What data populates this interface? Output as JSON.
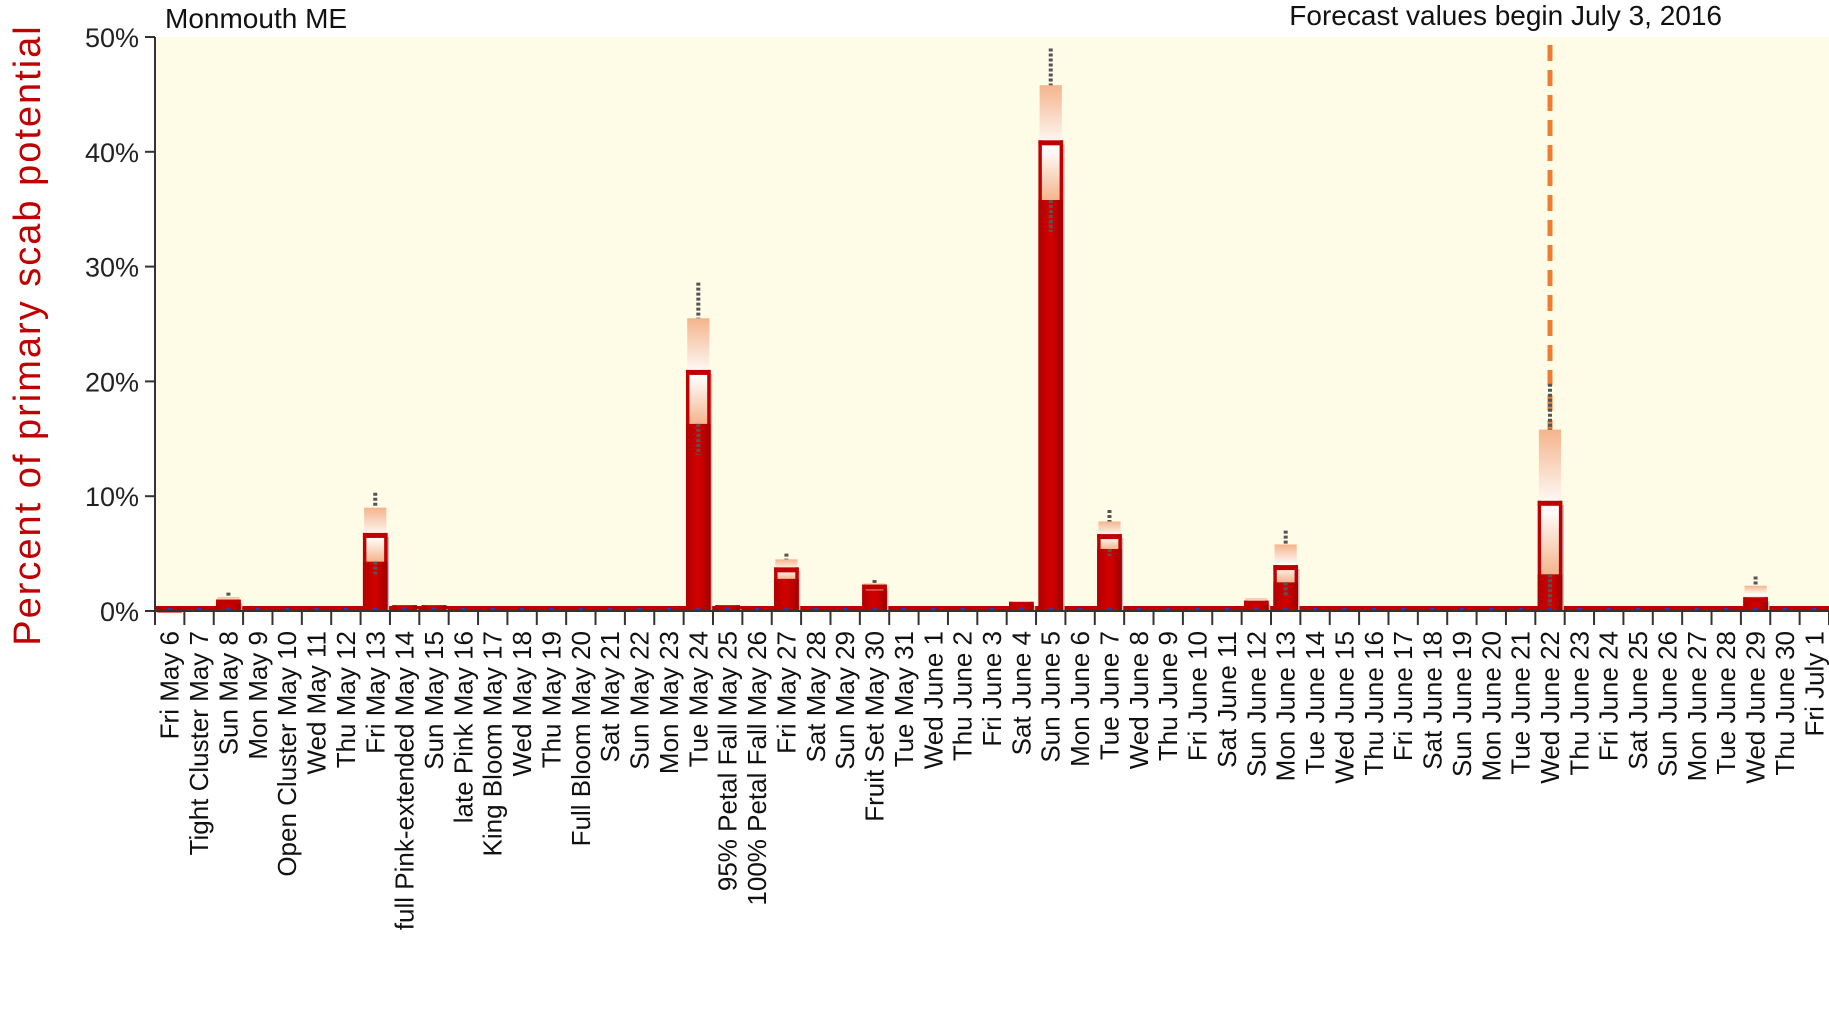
{
  "chart_data": {
    "type": "bar",
    "title": "Monmouth  ME",
    "ylabel": "Percent  of  primary  scab  potential",
    "xlabel": "",
    "ylim": [
      0,
      50
    ],
    "ytick_values": [
      0,
      10,
      20,
      30,
      40,
      50
    ],
    "ytick_labels": [
      "0%",
      "10%",
      "20%",
      "30%",
      "40%",
      "50%"
    ],
    "grid": false,
    "forecast_annotation": "Forecast values begin July 3, 2016",
    "forecast_marker_category": "Wed  June 22",
    "colors": {
      "bar": "#c00000",
      "range": "#f4b48c",
      "plot_bg": "#fefbe6",
      "forecast_line": "#ed7d31",
      "axis_label": "#c00000"
    },
    "categories": [
      "Fri  May 6",
      "Tight Cluster  May 7",
      "Sun  May 8",
      "Mon  May 9",
      "Open Cluster May 10",
      "Wed  May 11",
      "Thu  May 12",
      "Fri  May 13",
      "full Pink-extended  May 14",
      "Sun  May 15",
      "late Pink  May 16",
      "King Bloom  May 17",
      "Wed  May 18",
      "Thu  May 19",
      "Full Bloom  May 20",
      "Sat  May 21",
      "Sun  May 22",
      "Mon  May 23",
      "Tue  May 24",
      "95% Petal Fall  May 25",
      "100% Petal Fall  May 26",
      "Fri  May 27",
      "Sat  May 28",
      "Sun  May 29",
      "Fruit Set  May 30",
      "Tue  May 31",
      "Wed  June 1",
      "Thu  June 2",
      "Fri  June 3",
      "Sat  June 4",
      "Sun  June 5",
      "Mon  June 6",
      "Tue  June 7",
      "Wed  June 8",
      "Thu  June 9",
      "Fri  June 10",
      "Sat  June 11",
      "Sun  June 12",
      "Mon  June 13",
      "Tue  June 14",
      "Wed  June 15",
      "Thu  June 16",
      "Fri  June 17",
      "Sat  June 18",
      "Sun  June 19",
      "Mon  June 20",
      "Tue  June 21",
      "Wed  June 22",
      "Thu  June 23",
      "Fri  June 24",
      "Sat  June 25",
      "Sun  June 26",
      "Mon  June 27",
      "Tue  June 28",
      "Wed  June 29",
      "Thu  June 30",
      "Fri  July 1"
    ],
    "series": [
      {
        "values": [
          0.3,
          0.2,
          1.0,
          0.2,
          0.2,
          0.2,
          0.2,
          6.8,
          0.5,
          0.5,
          0.2,
          0.2,
          0.2,
          0.2,
          0.2,
          0.2,
          0.2,
          0.2,
          21.0,
          0.5,
          0.2,
          3.8,
          0.2,
          0.2,
          2.3,
          0.2,
          0.2,
          0.2,
          0.2,
          0.8,
          41.0,
          0.2,
          6.7,
          0.2,
          0.2,
          0.2,
          0.2,
          0.9,
          4.0,
          0.2,
          0.2,
          0.2,
          0.2,
          0.2,
          0.2,
          0.2,
          0.2,
          9.6,
          0.2,
          0.2,
          0.2,
          0.2,
          0.2,
          0.2,
          1.2,
          0.2,
          0.2
        ],
        "range_low": [
          0.3,
          0.2,
          0.6,
          0.2,
          0.2,
          0.2,
          0.2,
          4.3,
          0.5,
          0.5,
          0.2,
          0.2,
          0.2,
          0.2,
          0.2,
          0.2,
          0.2,
          0.2,
          16.3,
          0.5,
          0.2,
          2.8,
          0.2,
          0.2,
          1.8,
          0.2,
          0.2,
          0.2,
          0.2,
          0.6,
          35.8,
          0.2,
          5.4,
          0.2,
          0.2,
          0.2,
          0.2,
          0.6,
          2.5,
          0.2,
          0.2,
          0.2,
          0.2,
          0.2,
          0.2,
          0.2,
          0.2,
          3.2,
          0.2,
          0.2,
          0.2,
          0.2,
          0.2,
          0.2,
          0.8,
          0.2,
          0.2
        ],
        "range_high": [
          0.3,
          0.2,
          1.2,
          0.2,
          0.2,
          0.2,
          0.2,
          9.0,
          0.5,
          0.5,
          0.2,
          0.2,
          0.2,
          0.2,
          0.2,
          0.2,
          0.2,
          0.2,
          25.5,
          0.5,
          0.2,
          4.5,
          0.2,
          0.2,
          2.4,
          0.2,
          0.2,
          0.2,
          0.2,
          0.8,
          45.8,
          0.2,
          7.8,
          0.2,
          0.2,
          0.2,
          0.2,
          1.1,
          5.8,
          0.2,
          0.2,
          0.2,
          0.2,
          0.2,
          0.2,
          0.2,
          0.2,
          15.8,
          0.2,
          0.2,
          0.2,
          0.2,
          0.2,
          0.2,
          2.2,
          0.2,
          0.2
        ],
        "whisker_high": [
          0,
          0,
          1.6,
          0,
          0,
          0,
          0,
          10.3,
          0,
          0,
          0,
          0,
          0,
          0,
          0,
          0,
          0,
          0,
          28.6,
          0,
          0,
          5.0,
          0,
          0,
          2.7,
          0,
          0,
          0,
          0,
          0,
          49.0,
          0,
          8.8,
          0,
          0,
          0,
          0,
          0,
          7.0,
          0,
          0,
          0,
          0,
          0,
          0,
          0,
          0,
          19.8,
          0,
          0,
          0,
          0,
          0,
          0,
          3.0,
          0,
          0
        ],
        "whisker_low": [
          0,
          0,
          0,
          0,
          0,
          0,
          0,
          3.2,
          0,
          0,
          0,
          0,
          0,
          0,
          0,
          0,
          0,
          0,
          13.6,
          0,
          0,
          0,
          0,
          0,
          0,
          0,
          0,
          0,
          0,
          0,
          33.0,
          0,
          4.8,
          0,
          0,
          0,
          0,
          0,
          1.2,
          0,
          0,
          0,
          0,
          0,
          0,
          0,
          0,
          0.5,
          0,
          0,
          0,
          0,
          0,
          0,
          0,
          0,
          0
        ]
      }
    ]
  }
}
